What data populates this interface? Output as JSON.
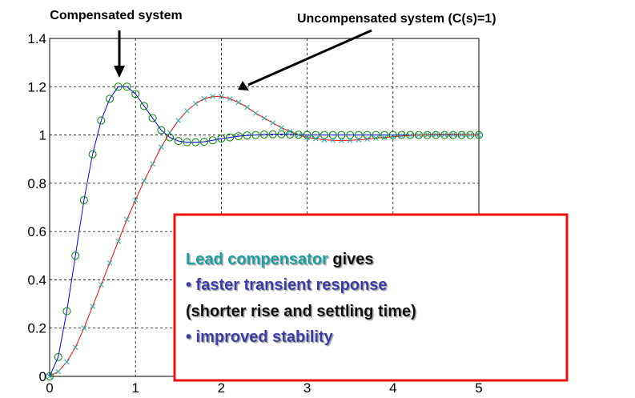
{
  "chart_data": {
    "type": "line",
    "x": [
      0,
      0.1,
      0.2,
      0.3,
      0.4,
      0.5,
      0.6,
      0.7,
      0.8,
      0.9,
      1,
      1.1,
      1.2,
      1.3,
      1.4,
      1.5,
      1.6,
      1.7,
      1.8,
      1.9,
      2,
      2.1,
      2.2,
      2.3,
      2.4,
      2.5,
      2.6,
      2.7,
      2.8,
      2.9,
      3,
      3.1,
      3.2,
      3.3,
      3.4,
      3.5,
      3.6,
      3.7,
      3.8,
      3.9,
      4,
      4.1,
      4.2,
      4.3,
      4.4,
      4.5,
      4.6,
      4.7,
      4.8,
      4.9,
      5
    ],
    "series": [
      {
        "name": "Compensated system",
        "color": "#0000ff",
        "marker": "circle",
        "marker_color": "#008000",
        "values": [
          0,
          0.08,
          0.27,
          0.5,
          0.73,
          0.92,
          1.06,
          1.15,
          1.2,
          1.2,
          1.17,
          1.12,
          1.07,
          1.02,
          0.99,
          0.975,
          0.97,
          0.97,
          0.972,
          0.978,
          0.985,
          0.99,
          0.995,
          0.998,
          1,
          1.002,
          1.003,
          1.003,
          1.002,
          1.001,
          1,
          1,
          1,
          1,
          1,
          1,
          1,
          1,
          1,
          1,
          1,
          1,
          1,
          1,
          1,
          1,
          1,
          1,
          1,
          1,
          1
        ]
      },
      {
        "name": "Uncompensated system (C(s)=1)",
        "color": "#ff0000",
        "marker": "x",
        "marker_color": "#22aaaa",
        "values": [
          0,
          0.02,
          0.06,
          0.12,
          0.2,
          0.29,
          0.38,
          0.47,
          0.56,
          0.65,
          0.73,
          0.81,
          0.88,
          0.95,
          1.01,
          1.06,
          1.1,
          1.13,
          1.15,
          1.16,
          1.16,
          1.15,
          1.135,
          1.115,
          1.09,
          1.07,
          1.05,
          1.03,
          1.015,
          1,
          0.99,
          0.985,
          0.98,
          0.978,
          0.977,
          0.978,
          0.98,
          0.983,
          0.987,
          0.99,
          0.993,
          0.996,
          0.998,
          1,
          1.001,
          1.002,
          1.002,
          1.002,
          1.001,
          1,
          1
        ]
      }
    ],
    "xlim": [
      0,
      5
    ],
    "ylim": [
      0,
      1.4
    ],
    "xticks": [
      0,
      1,
      2,
      3,
      4,
      5
    ],
    "yticks": [
      0,
      0.2,
      0.4,
      0.6,
      0.8,
      1,
      1.2,
      1.4
    ],
    "grid": true,
    "annotations": {
      "lead_compensator": "Lead compensator",
      "gives": " gives",
      "faster": "• faster transient response",
      "shorter": "(shorter rise and settling time)",
      "stability": "• improved stability"
    }
  }
}
